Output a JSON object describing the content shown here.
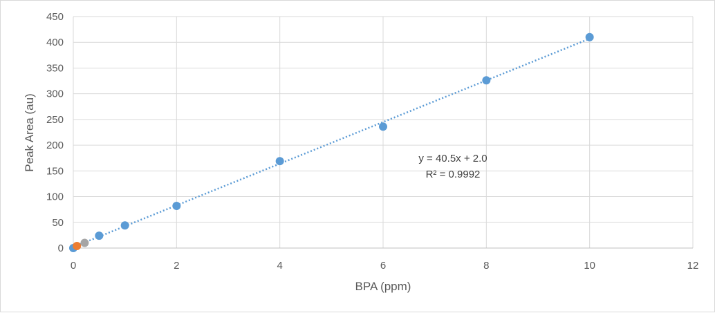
{
  "chart_data": {
    "type": "scatter",
    "title": "",
    "xlabel": "BPA (ppm)",
    "ylabel": "Peak Area (au)",
    "xlim": [
      0,
      12
    ],
    "ylim": [
      0,
      450
    ],
    "xticks": [
      0,
      2,
      4,
      6,
      8,
      10,
      12
    ],
    "yticks": [
      0,
      50,
      100,
      150,
      200,
      250,
      300,
      350,
      400,
      450
    ],
    "grid": true,
    "legend": "none",
    "series": [
      {
        "color": "#5b9bd5",
        "points": [
          {
            "x": 0,
            "y": 0
          },
          {
            "x": 0.5,
            "y": 24
          },
          {
            "x": 1,
            "y": 44
          },
          {
            "x": 2,
            "y": 82
          },
          {
            "x": 4,
            "y": 169
          },
          {
            "x": 6,
            "y": 236
          },
          {
            "x": 8,
            "y": 326
          },
          {
            "x": 10,
            "y": 410
          }
        ]
      },
      {
        "color": "#ed7d31",
        "points": [
          {
            "x": 0.07,
            "y": 4
          }
        ]
      },
      {
        "color": "#a5a5a5",
        "points": [
          {
            "x": 0.22,
            "y": 10
          }
        ]
      }
    ],
    "trendline": {
      "slope": 40.5,
      "intercept": 2.0,
      "x_range": [
        0,
        10
      ],
      "color": "#5b9bd5",
      "style": "dotted"
    },
    "annotations": {
      "equation": "y = 40.5x + 2.0",
      "r_squared": "R² = 0.9992"
    }
  }
}
